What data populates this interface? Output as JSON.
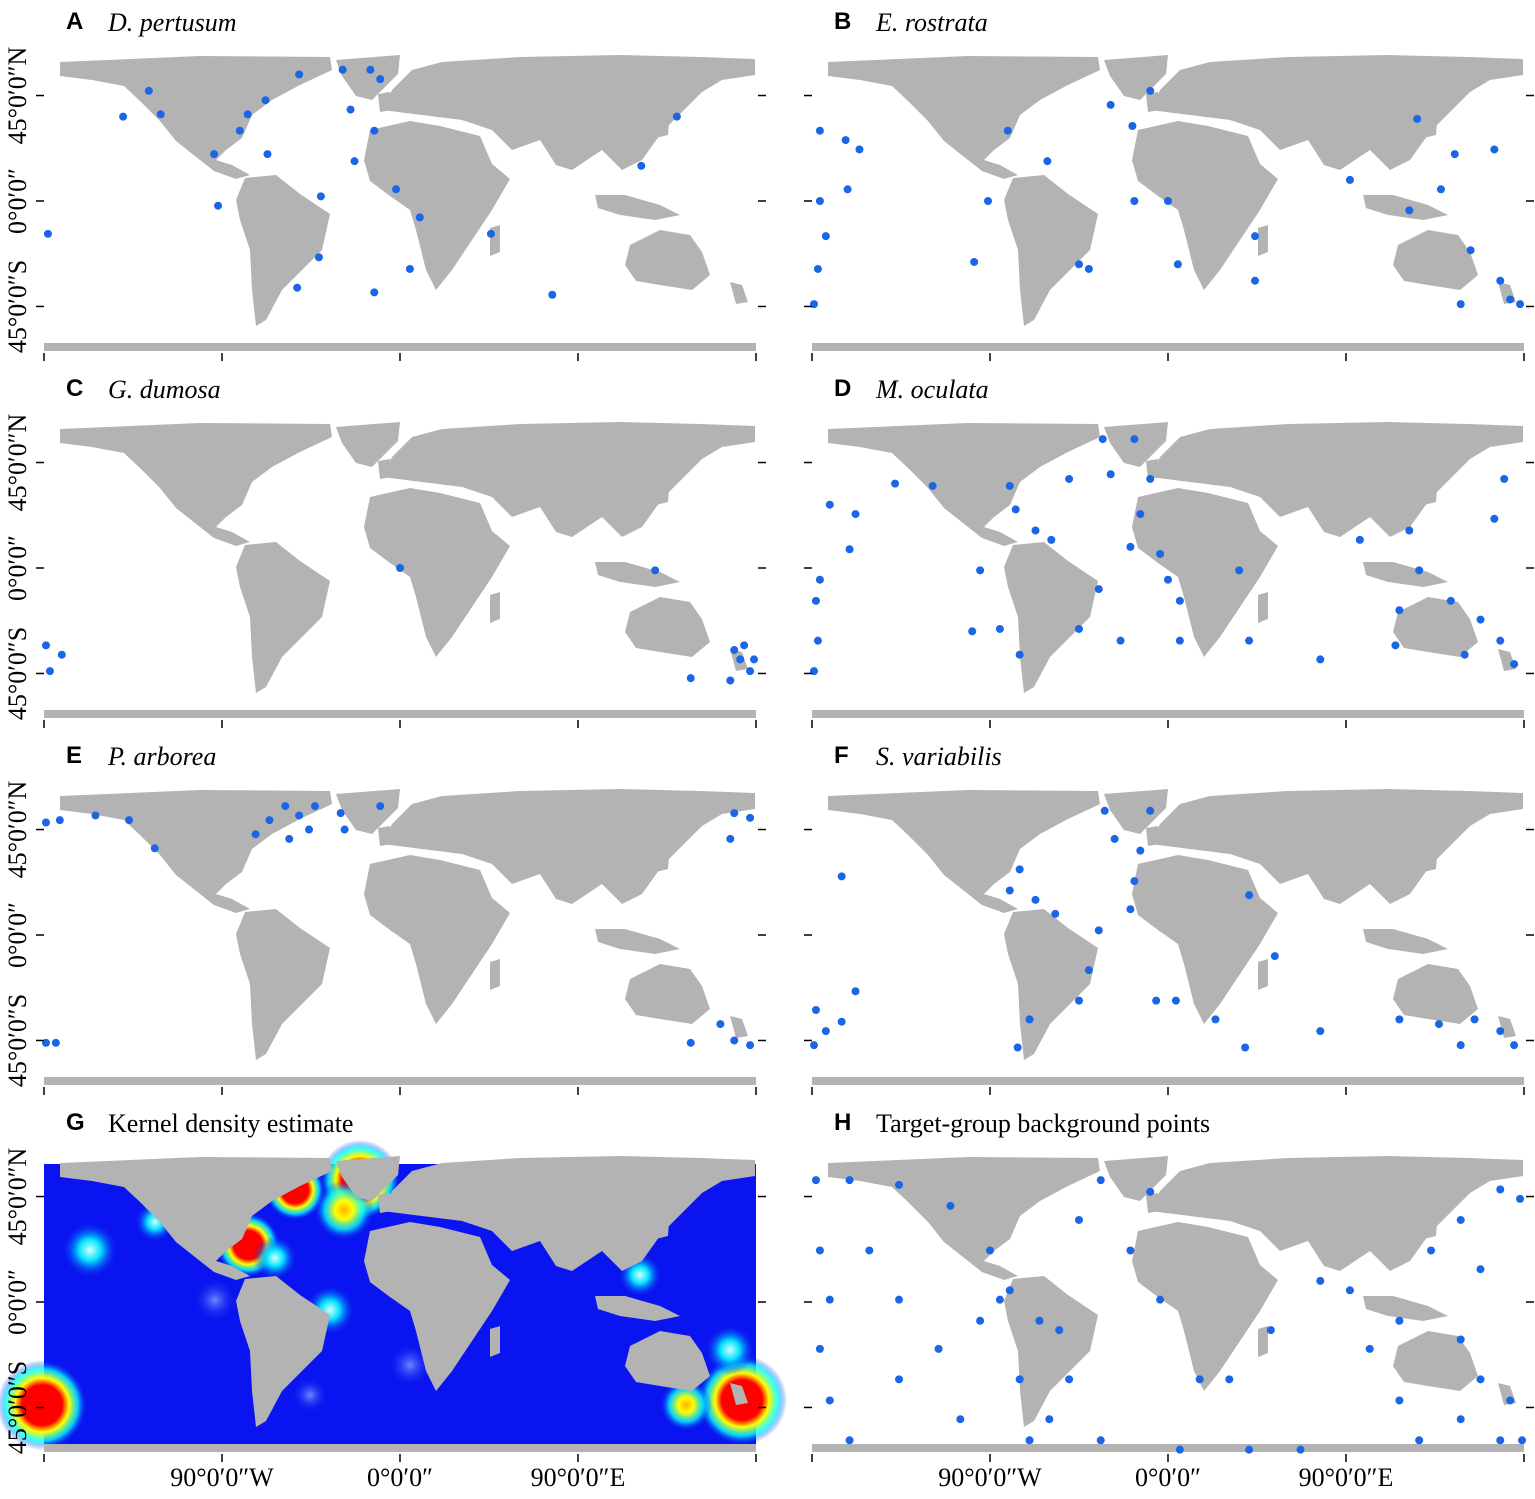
{
  "chart_data": [
    {
      "type": "scatter",
      "panel": "A",
      "title": "D. pertusum",
      "title_style": "italic",
      "color": "#1a66e6",
      "xlim": [
        -180,
        180
      ],
      "ylim": [
        -64,
        64
      ],
      "yticks": [
        {
          "value": 45,
          "label": "45°0′0″N"
        },
        {
          "value": 0,
          "label": "0°0′0″"
        },
        {
          "value": -45,
          "label": "45°0′0″S"
        }
      ],
      "x": [
        -178,
        -140,
        -127,
        -121,
        -94,
        -92,
        -81,
        -77,
        -68,
        -51,
        -40,
        -41,
        -52,
        -29,
        -15,
        -10,
        -25,
        -13,
        -23,
        -2,
        10,
        5,
        46,
        -13,
        77,
        140,
        122,
        -67
      ],
      "y": [
        -14,
        36,
        47,
        37,
        20,
        -2,
        30,
        37,
        43,
        54,
        2,
        -24,
        -37,
        56,
        56,
        52,
        39,
        30,
        17,
        5,
        -7,
        -29,
        -14,
        -39,
        -40,
        36,
        15,
        20
      ]
    },
    {
      "type": "scatter",
      "panel": "B",
      "title": "E. rostrata",
      "title_style": "italic",
      "color": "#1a66e6",
      "xlim": [
        -180,
        180
      ],
      "ylim": [
        -64,
        64
      ],
      "x": [
        -176,
        -163,
        -156,
        -176,
        -173,
        -177,
        -179,
        -162,
        -81,
        -61,
        -91,
        -98,
        -45,
        -40,
        -9,
        -18,
        -29,
        5,
        0,
        -17,
        44,
        44,
        92,
        126,
        145,
        165,
        153,
        168,
        173,
        148,
        178,
        122,
        138
      ],
      "y": [
        30,
        26,
        22,
        0,
        -15,
        -29,
        -44,
        5,
        30,
        17,
        0,
        -26,
        -27,
        -29,
        47,
        32,
        41,
        -27,
        0,
        0,
        -15,
        -34,
        9,
        35,
        20,
        22,
        -21,
        -34,
        -42,
        -44,
        -44,
        -4,
        5
      ]
    },
    {
      "type": "scatter",
      "panel": "C",
      "title": "G. dumosa",
      "title_style": "italic",
      "color": "#1a66e6",
      "xlim": [
        -180,
        180
      ],
      "ylim": [
        -64,
        64
      ],
      "yticks": [
        {
          "value": 45,
          "label": "45°0′0″N"
        },
        {
          "value": 0,
          "label": "0°0′0″"
        },
        {
          "value": -45,
          "label": "45°0′0″S"
        }
      ],
      "x": [
        -179,
        -177,
        -171,
        0,
        129,
        147,
        169,
        177,
        172,
        167,
        174,
        179
      ],
      "y": [
        -33,
        -44,
        -37,
        0,
        -1,
        -47,
        -35,
        -44,
        -39,
        -48,
        -33,
        -39
      ]
    },
    {
      "type": "scatter",
      "panel": "D",
      "title": "M. oculata",
      "title_style": "italic",
      "color": "#1a66e6",
      "xlim": [
        -180,
        180
      ],
      "ylim": [
        -64,
        64
      ],
      "x": [
        -171,
        -158,
        -161,
        -176,
        -178,
        -177,
        -179,
        -138,
        -119,
        -80,
        -77,
        -67,
        -59,
        -95,
        -99,
        -85,
        -75,
        -45,
        -35,
        -33,
        -29,
        -17,
        -9,
        -14,
        -4,
        6,
        0,
        -19,
        6,
        36,
        41,
        77,
        97,
        117,
        115,
        127,
        122,
        143,
        158,
        168,
        175,
        150,
        170,
        165,
        -24,
        -50
      ],
      "y": [
        27,
        23,
        8,
        -5,
        -14,
        -31,
        -44,
        36,
        35,
        35,
        25,
        16,
        12,
        -1,
        -27,
        -26,
        -37,
        -26,
        -9,
        55,
        40,
        55,
        38,
        23,
        6,
        -14,
        -5,
        9,
        -31,
        -1,
        -31,
        -39,
        12,
        -18,
        -33,
        -1,
        16,
        -14,
        -22,
        -31,
        -41,
        -37,
        38,
        21,
        -31,
        38
      ]
    },
    {
      "type": "scatter",
      "panel": "E",
      "title": "P. arborea",
      "title_style": "italic",
      "color": "#1a66e6",
      "xlim": [
        -180,
        180
      ],
      "ylim": [
        -64,
        64
      ],
      "yticks": [
        {
          "value": 45,
          "label": "45°0′0″N"
        },
        {
          "value": 0,
          "label": "0°0′0″"
        },
        {
          "value": -45,
          "label": "45°0′0″S"
        }
      ],
      "x": [
        -179,
        -172,
        -154,
        -137,
        -124,
        -73,
        -66,
        -58,
        -51,
        -46,
        -56,
        -43,
        -30,
        -28,
        -10,
        169,
        177,
        167,
        147,
        162,
        169,
        177,
        -179,
        -174
      ],
      "y": [
        48,
        49,
        51,
        49,
        37,
        43,
        49,
        55,
        51,
        45,
        41,
        55,
        52,
        45,
        55,
        52,
        50,
        41,
        -46,
        -38,
        -45,
        -47,
        -46,
        -46
      ]
    },
    {
      "type": "scatter",
      "panel": "F",
      "title": "S. variabilis",
      "title_style": "italic",
      "color": "#1a66e6",
      "xlim": [
        -180,
        180
      ],
      "ylim": [
        -64,
        64
      ],
      "x": [
        -178,
        -173,
        -165,
        -179,
        -158,
        -165,
        -75,
        -80,
        -67,
        -57,
        -76,
        -70,
        -45,
        -40,
        -35,
        -32,
        -27,
        -14,
        -9,
        -17,
        -19,
        -6,
        24,
        39,
        4,
        54,
        41,
        77,
        117,
        137,
        155,
        168,
        175,
        148
      ],
      "y": [
        -32,
        -41,
        -37,
        -47,
        -24,
        25,
        28,
        19,
        15,
        9,
        -48,
        -36,
        -28,
        -15,
        2,
        53,
        41,
        36,
        53,
        23,
        11,
        -28,
        -36,
        -48,
        -28,
        -9,
        17,
        -41,
        -36,
        -38,
        -36,
        -41,
        -47,
        -47
      ]
    },
    {
      "type": "density",
      "panel": "G",
      "title": "Kernel density estimate",
      "title_style": "normal",
      "xlim": [
        -180,
        180
      ],
      "ylim": [
        -64,
        64
      ],
      "yticks": [
        {
          "value": 45,
          "label": "45°0′0″N"
        },
        {
          "value": 0,
          "label": "0°0′0″"
        },
        {
          "value": -45,
          "label": "45°0′0″S"
        }
      ],
      "xticks": [
        {
          "value": -90,
          "label": "90°0′0″W"
        },
        {
          "value": 0,
          "label": "0°0′0″"
        },
        {
          "value": 90,
          "label": "90°0′0″E"
        }
      ]
    },
    {
      "type": "scatter",
      "panel": "H",
      "title": "Target-group background points",
      "title_style": "normal",
      "color": "#1a66e6",
      "xlim": [
        -180,
        180
      ],
      "ylim": [
        -64,
        64
      ],
      "xticks": [
        {
          "value": -90,
          "label": "90°0′0″W"
        },
        {
          "value": 0,
          "label": "0°0′0″"
        },
        {
          "value": 90,
          "label": "90°0′0″E"
        }
      ],
      "x": [
        -178,
        -161,
        -136,
        -110,
        -90,
        -80,
        -65,
        -55,
        -50,
        -60,
        -70,
        -75,
        -85,
        -176,
        -171,
        -176,
        -171,
        -161,
        -136,
        -116,
        -95,
        -34,
        -19,
        -4,
        16,
        31,
        52,
        67,
        41,
        6,
        -34,
        92,
        117,
        133,
        148,
        168,
        178,
        158,
        148,
        158,
        173,
        168,
        148,
        117,
        102,
        127,
        179,
        77,
        -45,
        -9,
        -105,
        -136,
        -151
      ],
      "y": [
        52,
        52,
        50,
        41,
        22,
        5,
        -8,
        -12,
        -33,
        -50,
        -59,
        -33,
        1,
        22,
        1,
        -20,
        -42,
        -59,
        -33,
        -20,
        -8,
        52,
        22,
        1,
        -33,
        -33,
        -12,
        -63,
        -63,
        -63,
        -59,
        5,
        -8,
        22,
        35,
        48,
        44,
        14,
        -16,
        -33,
        -42,
        -59,
        -50,
        -42,
        -20,
        -59,
        -59,
        9,
        35,
        47,
        -50,
        1,
        22
      ]
    }
  ]
}
